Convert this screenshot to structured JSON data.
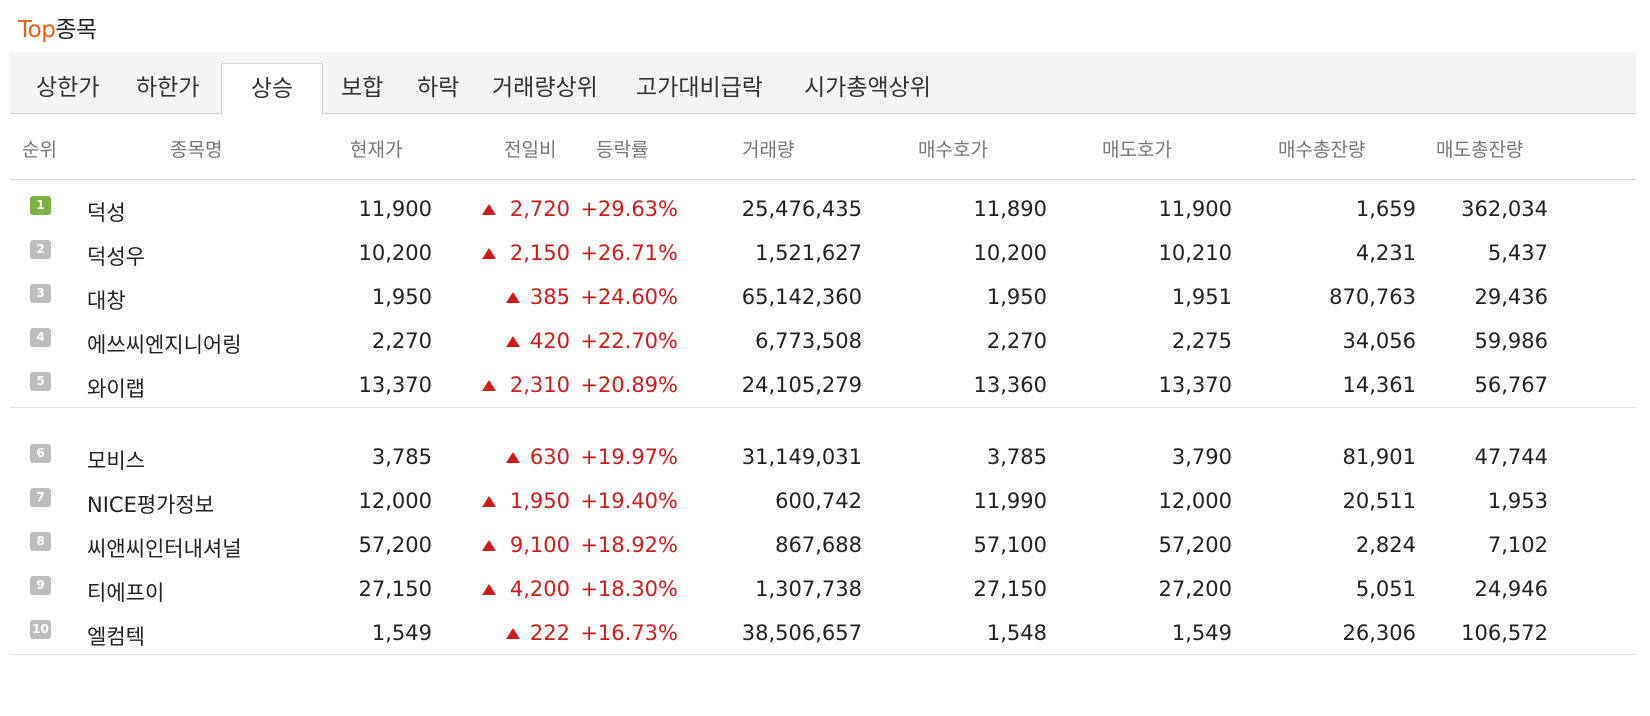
{
  "title": {
    "accent": "Top",
    "rest": "종목"
  },
  "tabs": [
    {
      "label": "상한가",
      "active": false
    },
    {
      "label": "하한가",
      "active": false
    },
    {
      "label": "상승",
      "active": true
    },
    {
      "label": "보합",
      "active": false
    },
    {
      "label": "하락",
      "active": false
    },
    {
      "label": "거래량상위",
      "active": false
    },
    {
      "label": "고가대비급락",
      "active": false
    },
    {
      "label": "시가총액상위",
      "active": false
    }
  ],
  "columns": [
    "순위",
    "종목명",
    "현재가",
    "전일비",
    "등락률",
    "거래량",
    "매수호가",
    "매도호가",
    "매수총잔량",
    "매도총잔량"
  ],
  "rows": [
    {
      "rank": "1",
      "name": "덕성",
      "price": "11,900",
      "change": "2,720",
      "rate": "+29.63%",
      "volume": "25,476,435",
      "bid": "11,890",
      "ask": "11,900",
      "bid_total": "1,659",
      "ask_total": "362,034"
    },
    {
      "rank": "2",
      "name": "덕성우",
      "price": "10,200",
      "change": "2,150",
      "rate": "+26.71%",
      "volume": "1,521,627",
      "bid": "10,200",
      "ask": "10,210",
      "bid_total": "4,231",
      "ask_total": "5,437"
    },
    {
      "rank": "3",
      "name": "대창",
      "price": "1,950",
      "change": "385",
      "rate": "+24.60%",
      "volume": "65,142,360",
      "bid": "1,950",
      "ask": "1,951",
      "bid_total": "870,763",
      "ask_total": "29,436"
    },
    {
      "rank": "4",
      "name": "에쓰씨엔지니어링",
      "price": "2,270",
      "change": "420",
      "rate": "+22.70%",
      "volume": "6,773,508",
      "bid": "2,270",
      "ask": "2,275",
      "bid_total": "34,056",
      "ask_total": "59,986"
    },
    {
      "rank": "5",
      "name": "와이랩",
      "price": "13,370",
      "change": "2,310",
      "rate": "+20.89%",
      "volume": "24,105,279",
      "bid": "13,360",
      "ask": "13,370",
      "bid_total": "14,361",
      "ask_total": "56,767"
    },
    {
      "rank": "6",
      "name": "모비스",
      "price": "3,785",
      "change": "630",
      "rate": "+19.97%",
      "volume": "31,149,031",
      "bid": "3,785",
      "ask": "3,790",
      "bid_total": "81,901",
      "ask_total": "47,744"
    },
    {
      "rank": "7",
      "name": "NICE평가정보",
      "price": "12,000",
      "change": "1,950",
      "rate": "+19.40%",
      "volume": "600,742",
      "bid": "11,990",
      "ask": "12,000",
      "bid_total": "20,511",
      "ask_total": "1,953"
    },
    {
      "rank": "8",
      "name": "씨앤씨인터내셔널",
      "price": "57,200",
      "change": "9,100",
      "rate": "+18.92%",
      "volume": "867,688",
      "bid": "57,100",
      "ask": "57,200",
      "bid_total": "2,824",
      "ask_total": "7,102"
    },
    {
      "rank": "9",
      "name": "티에프이",
      "price": "27,150",
      "change": "4,200",
      "rate": "+18.30%",
      "volume": "1,307,738",
      "bid": "27,150",
      "ask": "27,200",
      "bid_total": "5,051",
      "ask_total": "24,946"
    },
    {
      "rank": "10",
      "name": "엘컴텍",
      "price": "1,549",
      "change": "222",
      "rate": "+16.73%",
      "volume": "38,506,657",
      "bid": "1,548",
      "ask": "1,549",
      "bid_total": "26,306",
      "ask_total": "106,572"
    }
  ],
  "colors": {
    "accent": "#e8601c",
    "up": "#d11a1a",
    "first_badge": "#7ab342",
    "badge": "#bdbdbd"
  },
  "icons": {
    "up_arrow": "up-triangle-icon",
    "rank_badge": "rank-badge-icon"
  }
}
